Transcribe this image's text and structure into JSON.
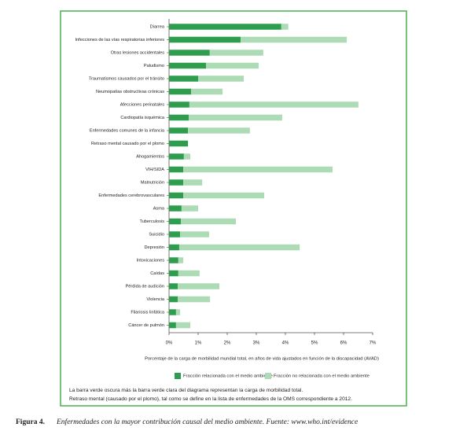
{
  "chart_data": {
    "type": "bar",
    "orientation": "horizontal",
    "stacked": true,
    "categories": [
      "Diarrea",
      "Infecciones de las vías respiratorias inferiores",
      "Otras lesiones accidentales",
      "Paludismo",
      "Traumatismos causados por el tránsito",
      "Neumopatías obstructivas crónicas",
      "Afecciones perinatales",
      "Cardiopatía isquémica",
      "Enfermedades comunes de la infancia",
      "Retraso mental causado por el plomo",
      "Ahogamientos",
      "VIH/SIDA",
      "Malnutrición",
      "Enfermedades cerebrovasculares",
      "Asma",
      "Tuberculosis",
      "Suicidio",
      "Depresión",
      "Intoxicaciones",
      "Caídas",
      "Pérdida de audición",
      "Violencia",
      "Filariosis linfática",
      "Cáncer de pulmón"
    ],
    "series": [
      {
        "name": "Fracción relacionada con el medio ambiente",
        "color": "#2f9d4e",
        "values": [
          3.86,
          2.46,
          1.4,
          1.27,
          1.0,
          0.76,
          0.7,
          0.68,
          0.65,
          0.65,
          0.51,
          0.49,
          0.49,
          0.49,
          0.43,
          0.41,
          0.38,
          0.35,
          0.32,
          0.32,
          0.3,
          0.3,
          0.24,
          0.24
        ]
      },
      {
        "name": "Fracción no relacionada con el medio ambiente",
        "color": "#acdbb6",
        "values": [
          0.24,
          3.65,
          1.84,
          1.81,
          1.57,
          1.08,
          5.81,
          3.21,
          2.13,
          0,
          0.22,
          5.13,
          0.65,
          2.78,
          0.57,
          1.89,
          1.0,
          4.14,
          0.17,
          0.73,
          1.43,
          1.11,
          0.14,
          0.49
        ]
      }
    ],
    "xlim": [
      0,
      7
    ],
    "xticks": [
      {
        "value": 0,
        "label": "0%"
      },
      {
        "value": 1,
        "label": "1%"
      },
      {
        "value": 2,
        "label": "2%"
      },
      {
        "value": 3,
        "label": "3%"
      },
      {
        "value": 4,
        "label": "4%"
      },
      {
        "value": 5,
        "label": "5%"
      },
      {
        "value": 6,
        "label": "6%"
      },
      {
        "value": 7,
        "label": "7%"
      }
    ],
    "x_label": "Porcentaje de la carga de morbilidad mundial total, en años de vida ajustados en función de la discapacidad (AVAD)",
    "grid": false,
    "legend": "bottom",
    "notes": [
      "La barra verde oscura más la barra verde clara del diagrama representan la carga de morbilidad total.",
      "Retraso mental (causado por el plomo), tal como se define en la lista de enfermedades de la OMS correspondiente a 2012."
    ]
  },
  "caption": {
    "label": "Figura 4.",
    "text": "Enfermedades con la mayor contribución causal del medio ambiente. Fuente: www.who.int/evidence"
  }
}
